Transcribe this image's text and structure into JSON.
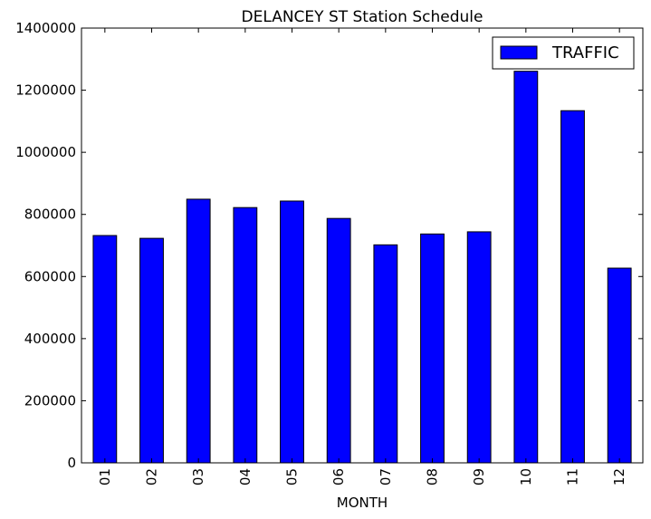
{
  "chart_data": {
    "type": "bar",
    "title": "DELANCEY ST Station Schedule",
    "xlabel": "MONTH",
    "ylabel": "",
    "categories": [
      "01",
      "02",
      "03",
      "04",
      "05",
      "06",
      "07",
      "08",
      "09",
      "10",
      "11",
      "12"
    ],
    "series": [
      {
        "name": "TRAFFIC",
        "color": "#0000ff",
        "values": [
          732000,
          723000,
          849000,
          822000,
          843000,
          787000,
          702000,
          737000,
          744000,
          1261000,
          1134000,
          627000
        ]
      }
    ],
    "ylim": [
      0,
      1400000
    ],
    "yticks": [
      "0",
      "200000",
      "400000",
      "600000",
      "800000",
      "1000000",
      "1200000",
      "1400000"
    ],
    "grid": false,
    "legend_position": "top-right"
  }
}
